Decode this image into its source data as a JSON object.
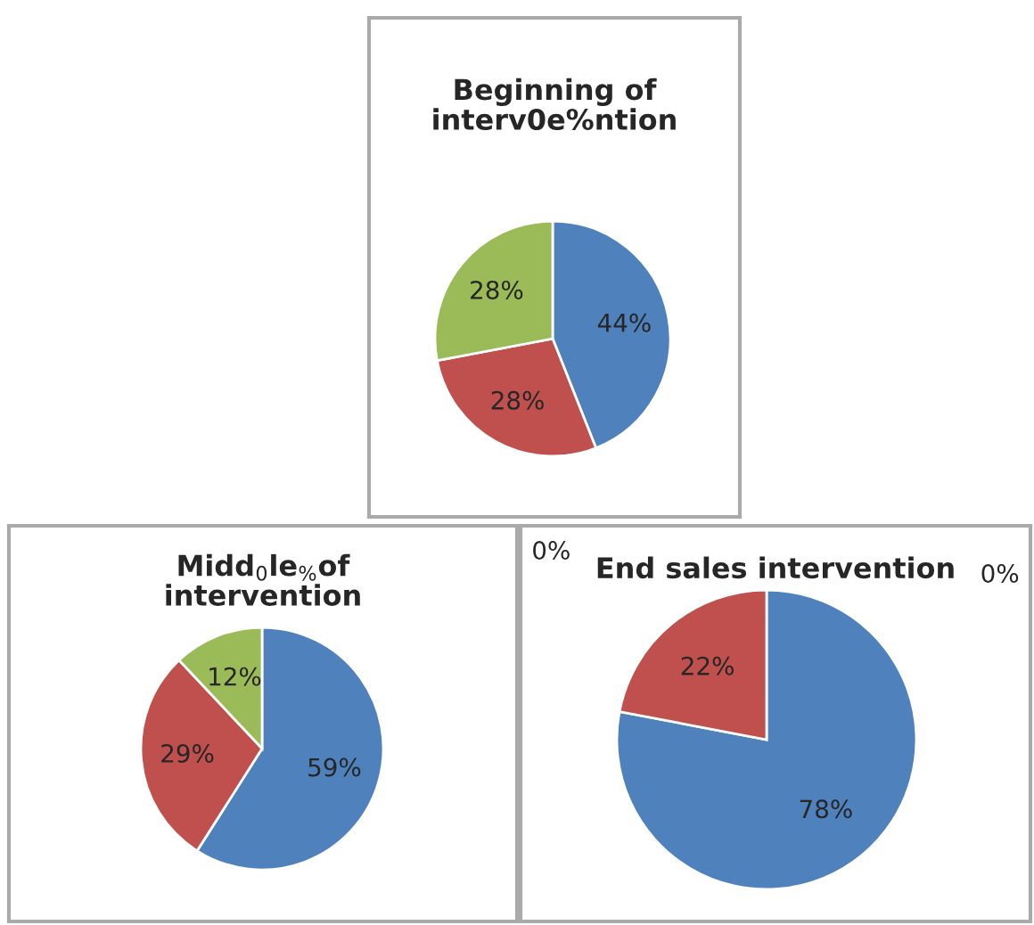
{
  "chart_data": [
    {
      "type": "pie",
      "title": "Beginning of interv0e%ntion",
      "categories": [
        null,
        null,
        null
      ],
      "values": [
        44,
        28,
        28
      ],
      "value_labels": [
        "44%",
        "28%",
        "28%"
      ],
      "colors": [
        "#4f81bd",
        "#c0504d",
        "#9bbb59"
      ]
    },
    {
      "type": "pie",
      "title": "Midd$_{0}$le$_{%}$of intervention",
      "categories": [
        null,
        null,
        null
      ],
      "values": [
        59,
        29,
        12
      ],
      "value_labels": [
        "59%",
        "29%",
        "12%"
      ],
      "colors": [
        "#4f81bd",
        "#c0504d",
        "#9bbb59"
      ]
    },
    {
      "type": "pie",
      "title": "End sales intervention",
      "categories": [
        null,
        null
      ],
      "values": [
        78,
        22
      ],
      "value_labels": [
        "78%",
        "22%"
      ],
      "colors": [
        "#4f81bd",
        "#c0504d"
      ],
      "annotations": [
        "0%",
        "0%"
      ]
    }
  ]
}
